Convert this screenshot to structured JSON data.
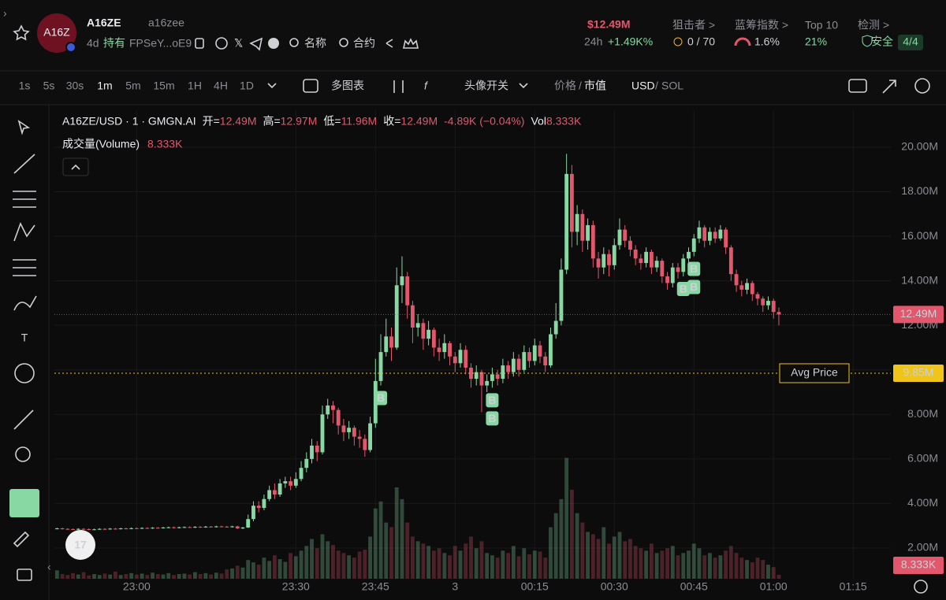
{
  "header": {
    "logo": "A16Z",
    "name": "A16ZE",
    "handle": "a16zee",
    "age": "4d",
    "hold": "持有",
    "address": "FPSeY...oE9",
    "name_btn": "名称",
    "contract_btn": "合约",
    "price": "$12.49M",
    "period": "24h",
    "change": "+1.49K%",
    "stats": [
      {
        "label": "狙击者 >",
        "value": "0 / 70"
      },
      {
        "label": "蓝筹指数 >",
        "value": "1.6%"
      },
      {
        "label": "Top 10",
        "value": "21%"
      },
      {
        "label": "检测 >",
        "value": "安全",
        "badge": "4/4"
      }
    ]
  },
  "toolbar": {
    "intervals": [
      "1s",
      "5s",
      "30s",
      "1m",
      "5m",
      "15m",
      "1H",
      "4H",
      "1D"
    ],
    "multi_chart": "多图表",
    "avatar_toggle": "头像开关",
    "price": "价格",
    "market_cap": "市值",
    "usd": "USD",
    "sol": "SOL"
  },
  "chart_data": {
    "type": "candlestick",
    "legend": {
      "symbol": "A16ZE/USD · 1 · GMGN.AI",
      "ohlc": [
        [
          "开=",
          "12.49M"
        ],
        [
          "高=",
          "12.97M"
        ],
        [
          "低=",
          "11.96M"
        ],
        [
          "收=",
          "12.49M"
        ]
      ],
      "change": "-4.89K (−0.04%)",
      "vol_label": "Vol",
      "vol_text": "8.333K",
      "volume_title": "成交量(Volume)",
      "volume_text": "8.333K"
    },
    "up_color": "#88d8a3",
    "down_color": "#e2576c",
    "x": [
      -75,
      -74,
      -73,
      -72,
      -71,
      -70,
      -69,
      -68,
      -67,
      -66,
      -65,
      -64,
      -63,
      -62,
      -61,
      -60,
      -59,
      -58,
      -57,
      -56,
      -55,
      -54,
      -53,
      -52,
      -51,
      -50,
      -49,
      -48,
      -47,
      -46,
      -45,
      -44,
      -43,
      -42,
      -41,
      -40,
      -39,
      -38,
      -37,
      -36,
      -35,
      -34,
      -33,
      -32,
      -31,
      -30,
      -29,
      -28,
      -27,
      -26,
      -25,
      -24,
      -23,
      -22,
      -21,
      -20,
      -19,
      -18,
      -17,
      -16,
      -15,
      -14,
      -13,
      -12,
      -11,
      -10,
      -9,
      -8,
      -7,
      -6,
      -5,
      -4,
      -3,
      -2,
      -1,
      0,
      1,
      2,
      3,
      4,
      5,
      6,
      7,
      8,
      9,
      10,
      11,
      12,
      13,
      14,
      15,
      16,
      17,
      18,
      19,
      20,
      21,
      22,
      23,
      24,
      25,
      26,
      27,
      28,
      29,
      30,
      31,
      32,
      33,
      34,
      35,
      36,
      37,
      38,
      39,
      40,
      41,
      42,
      43,
      44,
      45,
      46,
      47,
      48,
      49,
      50,
      51,
      52,
      53,
      54,
      55,
      56,
      57,
      58,
      59,
      60,
      61
    ],
    "open": [
      2.87,
      2.88,
      2.86,
      2.85,
      2.84,
      2.86,
      2.85,
      2.83,
      2.84,
      2.86,
      2.85,
      2.87,
      2.86,
      2.88,
      2.87,
      2.89,
      2.88,
      2.9,
      2.89,
      2.91,
      2.9,
      2.92,
      2.93,
      2.91,
      2.93,
      2.94,
      2.93,
      2.95,
      2.94,
      2.96,
      2.95,
      2.97,
      2.96,
      2.95,
      2.97,
      2.88,
      2.92,
      3.3,
      3.9,
      3.8,
      4.2,
      4.6,
      4.4,
      4.9,
      5.0,
      4.8,
      5.1,
      5.6,
      6.0,
      6.6,
      6.3,
      8.0,
      8.4,
      8.2,
      7.5,
      7.2,
      7.4,
      7.0,
      6.9,
      6.4,
      7.6,
      9.5,
      10.8,
      11.5,
      11.0,
      13.8,
      14.2,
      12.9,
      11.9,
      12.1,
      11.4,
      11.8,
      11.0,
      10.8,
      11.2,
      10.6,
      10.3,
      10.9,
      10.1,
      9.6,
      9.9,
      9.3,
      9.5,
      9.8,
      9.6,
      10.2,
      9.9,
      10.5,
      10.0,
      10.8,
      10.4,
      11.1,
      10.6,
      10.2,
      11.6,
      12.2,
      14.5,
      18.8,
      16.2,
      17.0,
      15.8,
      16.5,
      15.0,
      14.6,
      15.2,
      14.7,
      15.6,
      16.3,
      15.8,
      15.4,
      15.0,
      14.8,
      15.3,
      14.6,
      14.9,
      14.2,
      13.9,
      14.6,
      14.4,
      15.0,
      15.3,
      15.9,
      16.4,
      15.8,
      16.2,
      15.9,
      16.3,
      15.5,
      14.3,
      13.8,
      13.6,
      13.9,
      13.4,
      13.2,
      12.9,
      13.1,
      12.6
    ],
    "high": [
      2.91,
      2.91,
      2.89,
      2.88,
      2.89,
      2.89,
      2.88,
      2.87,
      2.89,
      2.89,
      2.9,
      2.9,
      2.91,
      2.91,
      2.92,
      2.92,
      2.93,
      2.93,
      2.94,
      2.94,
      2.95,
      2.96,
      2.96,
      2.96,
      2.97,
      2.97,
      2.98,
      2.98,
      2.99,
      2.99,
      3.0,
      3.0,
      2.99,
      3.0,
      3.0,
      2.95,
      3.5,
      4.1,
      4.1,
      4.4,
      4.8,
      4.9,
      5.1,
      5.2,
      5.2,
      5.4,
      5.9,
      6.3,
      6.9,
      6.8,
      8.4,
      8.7,
      8.6,
      8.3,
      7.8,
      7.7,
      7.5,
      7.3,
      7.1,
      7.9,
      10.5,
      11.6,
      12.3,
      11.9,
      14.6,
      15.1,
      14.4,
      13.1,
      12.5,
      12.3,
      12.2,
      11.9,
      11.4,
      11.6,
      11.3,
      10.8,
      11.2,
      11.1,
      10.3,
      10.2,
      10.0,
      9.8,
      10.1,
      10.0,
      10.5,
      10.4,
      10.8,
      10.7,
      11.1,
      11.0,
      11.4,
      11.3,
      10.8,
      11.9,
      13.0,
      15.0,
      19.7,
      19.2,
      17.4,
      17.2,
      16.8,
      16.7,
      15.3,
      15.5,
      15.4,
      15.9,
      16.8,
      16.5,
      16.0,
      15.6,
      15.2,
      15.5,
      15.4,
      15.1,
      15.0,
      14.4,
      14.8,
      14.8,
      15.2,
      15.5,
      16.1,
      16.7,
      16.5,
      16.4,
      16.4,
      16.5,
      16.4,
      15.6,
      14.5,
      14.0,
      14.1,
      14.0,
      13.5,
      13.3,
      13.3,
      13.2,
      12.8
    ],
    "low": [
      2.84,
      2.83,
      2.82,
      2.81,
      2.81,
      2.82,
      2.8,
      2.8,
      2.81,
      2.82,
      2.82,
      2.83,
      2.83,
      2.84,
      2.84,
      2.85,
      2.85,
      2.86,
      2.86,
      2.87,
      2.87,
      2.89,
      2.88,
      2.88,
      2.9,
      2.9,
      2.9,
      2.91,
      2.91,
      2.92,
      2.92,
      2.93,
      2.92,
      2.92,
      2.85,
      2.85,
      2.9,
      3.2,
      3.6,
      3.7,
      4.1,
      4.2,
      4.3,
      4.7,
      4.6,
      4.7,
      5.0,
      5.4,
      5.8,
      5.9,
      6.2,
      7.8,
      7.6,
      7.1,
      6.8,
      6.9,
      6.6,
      6.5,
      6.1,
      6.3,
      7.4,
      9.3,
      10.6,
      10.4,
      10.9,
      13.0,
      12.3,
      11.2,
      11.5,
      10.9,
      11.1,
      10.6,
      10.4,
      10.5,
      10.2,
      9.9,
      10.1,
      9.8,
      9.2,
      9.3,
      8.1,
      9.0,
      9.2,
      9.3,
      9.4,
      9.6,
      9.7,
      9.7,
      9.9,
      10.1,
      10.2,
      10.3,
      9.9,
      10.1,
      11.4,
      12.0,
      14.3,
      15.5,
      15.6,
      15.3,
      15.4,
      14.6,
      14.1,
      14.3,
      14.2,
      14.5,
      15.4,
      15.5,
      15.1,
      14.7,
      14.5,
      14.6,
      14.3,
      14.4,
      13.9,
      13.6,
      13.7,
      14.1,
      14.2,
      14.8,
      15.1,
      15.7,
      15.5,
      15.6,
      15.7,
      15.8,
      15.2,
      14.0,
      13.5,
      13.3,
      13.4,
      13.1,
      12.9,
      12.6,
      12.7,
      12.3,
      12.0
    ],
    "close": [
      2.88,
      2.86,
      2.85,
      2.84,
      2.86,
      2.85,
      2.83,
      2.84,
      2.86,
      2.85,
      2.87,
      2.86,
      2.88,
      2.87,
      2.89,
      2.88,
      2.9,
      2.89,
      2.91,
      2.9,
      2.92,
      2.93,
      2.91,
      2.93,
      2.94,
      2.93,
      2.95,
      2.94,
      2.96,
      2.95,
      2.97,
      2.96,
      2.95,
      2.97,
      2.88,
      2.92,
      3.3,
      3.9,
      3.8,
      4.2,
      4.6,
      4.4,
      4.9,
      5.0,
      4.8,
      5.1,
      5.6,
      6.0,
      6.6,
      6.3,
      8.0,
      8.4,
      8.2,
      7.5,
      7.2,
      7.4,
      7.0,
      6.9,
      6.4,
      7.6,
      9.5,
      10.8,
      11.5,
      11.0,
      13.8,
      14.2,
      12.9,
      11.9,
      12.1,
      11.4,
      11.8,
      11.0,
      10.8,
      11.2,
      10.6,
      10.3,
      10.9,
      10.1,
      9.6,
      9.9,
      9.3,
      9.5,
      9.8,
      9.6,
      10.2,
      9.9,
      10.5,
      10.0,
      10.8,
      10.4,
      11.1,
      10.6,
      10.2,
      11.6,
      12.2,
      14.5,
      18.8,
      16.2,
      17.0,
      15.8,
      16.5,
      15.0,
      14.6,
      15.2,
      14.7,
      15.6,
      16.3,
      15.8,
      15.4,
      15.0,
      14.8,
      15.3,
      14.6,
      14.9,
      14.2,
      13.9,
      14.6,
      14.4,
      15.0,
      15.3,
      15.9,
      16.4,
      15.8,
      16.2,
      15.9,
      16.3,
      15.5,
      14.3,
      13.8,
      13.6,
      13.9,
      13.4,
      13.2,
      12.9,
      13.1,
      12.6,
      12.49
    ],
    "volume": [
      18,
      10,
      8,
      12,
      9,
      14,
      7,
      10,
      8,
      11,
      9,
      15,
      8,
      10,
      12,
      9,
      11,
      8,
      13,
      10,
      9,
      12,
      8,
      10,
      11,
      9,
      14,
      10,
      12,
      9,
      13,
      11,
      20,
      22,
      28,
      24,
      40,
      35,
      30,
      45,
      38,
      50,
      42,
      36,
      55,
      48,
      60,
      70,
      85,
      65,
      95,
      80,
      72,
      60,
      55,
      50,
      45,
      58,
      62,
      90,
      150,
      165,
      120,
      110,
      195,
      170,
      120,
      90,
      80,
      75,
      70,
      60,
      65,
      55,
      50,
      70,
      60,
      75,
      90,
      65,
      80,
      55,
      50,
      45,
      60,
      55,
      70,
      48,
      65,
      52,
      60,
      58,
      45,
      110,
      140,
      170,
      258,
      190,
      140,
      120,
      100,
      95,
      85,
      110,
      75,
      90,
      100,
      80,
      85,
      70,
      65,
      60,
      75,
      55,
      60,
      65,
      70,
      50,
      55,
      60,
      75,
      65,
      50,
      55,
      45,
      50,
      60,
      70,
      55,
      45,
      40,
      35,
      45,
      40,
      30,
      25,
      8.333
    ],
    "volume_lim": [
      0,
      1000
    ],
    "xlim": [
      -75.5,
      82.1
    ],
    "xticks": [
      {
        "value": -60,
        "label": "23:00"
      },
      {
        "value": -30,
        "label": "23:30"
      },
      {
        "value": -15,
        "label": "23:45"
      },
      {
        "value": 0,
        "label": "3"
      },
      {
        "value": 15,
        "label": "00:15"
      },
      {
        "value": 30,
        "label": "00:30"
      },
      {
        "value": 45,
        "label": "00:45"
      },
      {
        "value": 60,
        "label": "01:00"
      },
      {
        "value": 75,
        "label": "01:15"
      }
    ],
    "ylim": [
      0.62,
      21.66
    ],
    "yticks": [
      {
        "value": 2,
        "label": "2.00M"
      },
      {
        "value": 4,
        "label": "4.00M"
      },
      {
        "value": 6,
        "label": "6.00M"
      },
      {
        "value": 8,
        "label": "8.00M"
      },
      {
        "value": 10,
        "label": "10.00M"
      },
      {
        "value": 12,
        "label": "12.00M"
      },
      {
        "value": 14,
        "label": "14.00M"
      },
      {
        "value": 16,
        "label": "16.00M"
      },
      {
        "value": 18,
        "label": "18.00M"
      },
      {
        "value": 20,
        "label": "20.00M"
      }
    ],
    "last_price": {
      "value": 12.49,
      "label": "12.49M"
    },
    "avg_price": {
      "name": "Avg Price",
      "value": 9.85,
      "label": "9.85M"
    },
    "last_volume": {
      "value": 8.333,
      "label": "8.333K"
    },
    "markers": {
      "label": "B",
      "x": [
        -14,
        7,
        7,
        43,
        45,
        45
      ]
    }
  }
}
